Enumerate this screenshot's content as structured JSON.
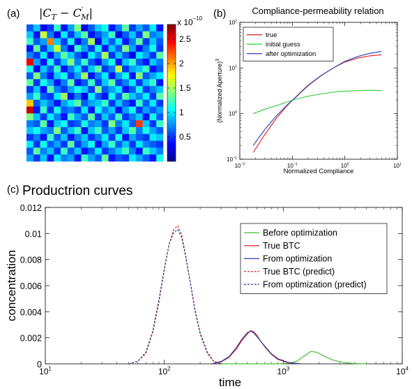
{
  "panels": {
    "a": {
      "tag": "(a)",
      "title": "|C_T − C′_M|"
    },
    "b": {
      "tag": "(b)"
    },
    "c": {
      "tag": "(c)"
    }
  },
  "chart_data": [
    {
      "type": "heatmap",
      "panel": "a",
      "title": "|C_T − C′_M|",
      "rows": 20,
      "cols": 20,
      "colormap": "jet",
      "colorbar": {
        "multiplier": "x 10",
        "exponent": "−10",
        "range": [
          0,
          2.8
        ],
        "ticks": [
          0.5,
          1,
          1.5,
          2,
          2.5
        ],
        "tick_labels": [
          "0.5",
          "1",
          "1.5",
          "2",
          "2.5"
        ]
      },
      "values": [
        [
          0.6,
          0.9,
          0.3,
          0.5,
          1.2,
          0.4,
          0.8,
          1.4,
          0.3,
          0.6,
          0.9,
          1.1,
          0.4,
          0.7,
          1.3,
          0.5,
          0.8,
          0.6,
          1.0,
          0.4
        ],
        [
          0.9,
          0.4,
          1.6,
          0.7,
          0.3,
          1.0,
          0.5,
          0.9,
          1.3,
          0.4,
          0.6,
          0.8,
          1.2,
          0.3,
          0.6,
          0.9,
          0.5,
          1.4,
          0.7,
          0.8
        ],
        [
          1.2,
          0.6,
          0.8,
          2.1,
          0.9,
          0.5,
          1.1,
          0.4,
          0.7,
          1.5,
          0.3,
          0.9,
          0.6,
          1.0,
          0.4,
          0.7,
          1.3,
          0.5,
          0.9,
          0.6
        ],
        [
          0.4,
          1.3,
          0.5,
          0.9,
          1.6,
          0.7,
          0.3,
          1.2,
          0.8,
          0.5,
          1.1,
          0.4,
          0.9,
          0.6,
          1.4,
          0.8,
          0.4,
          0.7,
          1.1,
          0.5
        ],
        [
          0.7,
          0.5,
          1.0,
          0.4,
          0.8,
          1.3,
          0.9,
          0.6,
          0.4,
          1.0,
          0.7,
          1.5,
          0.5,
          0.9,
          0.6,
          0.3,
          1.0,
          0.8,
          0.5,
          1.3
        ],
        [
          2.5,
          0.8,
          0.4,
          1.1,
          0.5,
          0.9,
          1.4,
          0.7,
          1.2,
          0.6,
          0.4,
          0.8,
          1.1,
          0.4,
          0.9,
          1.2,
          0.6,
          0.4,
          0.9,
          0.7
        ],
        [
          1.1,
          0.3,
          0.9,
          0.6,
          1.2,
          0.4,
          0.7,
          1.0,
          0.5,
          0.9,
          1.3,
          0.5,
          0.7,
          1.6,
          0.5,
          0.8,
          0.9,
          1.2,
          0.4,
          0.6
        ],
        [
          0.6,
          1.4,
          0.7,
          0.4,
          0.9,
          1.1,
          0.5,
          0.8,
          1.5,
          0.4,
          0.7,
          1.0,
          0.4,
          0.8,
          1.1,
          0.4,
          1.4,
          0.6,
          0.8,
          1.0
        ],
        [
          1.3,
          0.5,
          1.1,
          0.8,
          0.4,
          0.7,
          1.3,
          0.4,
          0.6,
          1.2,
          0.5,
          0.9,
          1.3,
          0.5,
          0.7,
          1.0,
          0.5,
          0.9,
          1.2,
          0.4
        ],
        [
          0.5,
          0.9,
          0.4,
          1.3,
          0.7,
          0.5,
          0.8,
          1.1,
          0.9,
          0.5,
          1.4,
          0.6,
          0.8,
          1.0,
          0.4,
          0.6,
          1.1,
          0.5,
          0.7,
          0.9
        ],
        [
          0.8,
          1.2,
          0.6,
          0.5,
          1.0,
          1.5,
          0.4,
          0.7,
          0.3,
          1.0,
          0.6,
          0.4,
          1.1,
          0.6,
          1.3,
          0.9,
          0.7,
          1.0,
          0.5,
          1.3
        ],
        [
          1.9,
          0.6,
          0.9,
          0.7,
          0.4,
          0.8,
          1.0,
          1.3,
          0.6,
          0.8,
          0.9,
          1.2,
          0.5,
          0.9,
          0.6,
          0.4,
          1.2,
          0.6,
          1.0,
          0.5
        ],
        [
          2.6,
          0.4,
          1.2,
          0.5,
          1.1,
          0.6,
          0.7,
          0.5,
          1.0,
          0.4,
          1.1,
          0.7,
          0.9,
          0.4,
          0.8,
          1.1,
          0.5,
          0.8,
          0.6,
          0.8
        ],
        [
          1.4,
          0.9,
          0.5,
          1.0,
          0.7,
          0.4,
          1.2,
          0.8,
          0.6,
          1.3,
          0.5,
          0.9,
          0.6,
          1.2,
          0.5,
          0.7,
          0.9,
          0.4,
          1.1,
          0.6
        ],
        [
          0.7,
          0.6,
          1.3,
          0.4,
          0.9,
          1.1,
          0.5,
          0.6,
          1.1,
          0.7,
          0.8,
          0.5,
          1.4,
          0.7,
          1.0,
          0.6,
          2.3,
          0.9,
          0.5,
          1.2
        ],
        [
          0.9,
          1.1,
          0.8,
          0.7,
          1.4,
          0.6,
          0.9,
          1.2,
          0.4,
          0.9,
          1.2,
          0.6,
          0.8,
          0.5,
          0.9,
          1.3,
          0.7,
          1.1,
          0.8,
          0.6
        ],
        [
          0.5,
          0.7,
          0.4,
          1.2,
          0.6,
          0.9,
          0.4,
          0.7,
          0.9,
          0.5,
          0.7,
          1.0,
          0.5,
          1.1,
          0.4,
          0.8,
          0.6,
          0.5,
          1.0,
          0.9
        ],
        [
          1.0,
          0.5,
          1.1,
          0.6,
          0.8,
          0.5,
          1.3,
          0.5,
          0.8,
          1.1,
          0.4,
          0.8,
          1.2,
          0.6,
          0.9,
          0.5,
          1.0,
          0.7,
          0.6,
          0.5
        ],
        [
          0.6,
          1.3,
          0.7,
          0.9,
          0.5,
          1.2,
          0.6,
          0.9,
          0.4,
          0.6,
          1.0,
          0.5,
          0.7,
          0.9,
          1.2,
          0.7,
          0.4,
          1.2,
          0.9,
          0.7
        ],
        [
          0.8,
          0.5,
          0.9,
          0.4,
          1.0,
          0.7,
          0.8,
          0.4,
          1.2,
          0.8,
          0.6,
          1.3,
          0.4,
          0.6,
          0.5,
          1.0,
          0.8,
          0.6,
          0.4,
          1.1
        ]
      ]
    },
    {
      "type": "line",
      "panel": "b",
      "title": "Compliance-permeability relation",
      "xlabel": "Normalized Compliance",
      "ylabel": "(Normalized Aperture)",
      "ylabel_sup": "3",
      "xscale": "log",
      "yscale": "log",
      "xlim": [
        0.01,
        10
      ],
      "ylim": [
        0.1,
        100
      ],
      "xticks": [
        {
          "v": 0.01,
          "b": "10",
          "e": "−2"
        },
        {
          "v": 0.1,
          "b": "10",
          "e": "−1"
        },
        {
          "v": 1,
          "b": "10",
          "e": "0"
        },
        {
          "v": 10,
          "b": "10",
          "e": "1"
        }
      ],
      "yticks": [
        {
          "v": 0.1,
          "b": "10",
          "e": "−1"
        },
        {
          "v": 1,
          "b": "10",
          "e": "0"
        },
        {
          "v": 10,
          "b": "10",
          "e": "1"
        },
        {
          "v": 100,
          "b": "10",
          "e": "2"
        }
      ],
      "legend_position": "top-left",
      "series": [
        {
          "name": "true",
          "color": "#e31a1c",
          "x": [
            0.018,
            0.03,
            0.05,
            0.08,
            0.12,
            0.2,
            0.35,
            0.6,
            1,
            1.8,
            3,
            5
          ],
          "y": [
            0.14,
            0.35,
            0.8,
            1.5,
            2.4,
            4.2,
            6.8,
            10,
            13.5,
            16.5,
            18.5,
            19.5
          ]
        },
        {
          "name": "initial guess",
          "color": "#33cc33",
          "x": [
            0.018,
            0.03,
            0.05,
            0.08,
            0.12,
            0.2,
            0.35,
            0.6,
            1,
            1.8,
            3,
            5
          ],
          "y": [
            1.0,
            1.25,
            1.5,
            1.8,
            2.1,
            2.4,
            2.7,
            2.95,
            3.1,
            3.2,
            3.25,
            3.2
          ]
        },
        {
          "name": "after optimization",
          "color": "#1f3fbf",
          "x": [
            0.018,
            0.03,
            0.05,
            0.08,
            0.12,
            0.2,
            0.35,
            0.6,
            1,
            1.8,
            3,
            5
          ],
          "y": [
            0.2,
            0.45,
            0.9,
            1.55,
            2.35,
            4.1,
            6.7,
            10,
            14,
            18,
            21,
            23
          ]
        }
      ]
    },
    {
      "type": "line",
      "panel": "c",
      "title": "Productrion curves",
      "xlabel": "time",
      "ylabel": "concentration",
      "xscale": "log",
      "xlim": [
        10,
        10000
      ],
      "ylim": [
        0,
        0.012
      ],
      "xticks": [
        {
          "v": 10,
          "b": "10",
          "e": "1"
        },
        {
          "v": 100,
          "b": "10",
          "e": "2"
        },
        {
          "v": 1000,
          "b": "10",
          "e": "3"
        },
        {
          "v": 10000,
          "b": "10",
          "e": "4"
        }
      ],
      "yticks": [
        0,
        0.002,
        0.004,
        0.006,
        0.008,
        0.01,
        0.012
      ],
      "ytick_labels": [
        "0",
        "0.002",
        "0.004",
        "0.006",
        "0.008",
        "0.01",
        "0.012"
      ],
      "legend_position": "right",
      "series": [
        {
          "name": "Before optimization",
          "color": "#44bb33",
          "dash": "solid",
          "x": [
            300,
            600,
            900,
            1100,
            1300,
            1500,
            1700,
            1900,
            2200,
            2600,
            3200,
            4000,
            5000
          ],
          "y": [
            0,
            0,
            0,
            5e-05,
            0.0002,
            0.0006,
            0.00095,
            0.0009,
            0.0006,
            0.0003,
            0.0001,
            2e-05,
            0
          ]
        },
        {
          "name": "True BTC",
          "color": "#d62728",
          "dash": "solid",
          "x": [
            250,
            300,
            350,
            400,
            450,
            500,
            530,
            560,
            600,
            650,
            700,
            800,
            900,
            1100,
            1400
          ],
          "y": [
            0,
            0.00015,
            0.0005,
            0.0011,
            0.0018,
            0.0023,
            0.00255,
            0.0025,
            0.0022,
            0.0017,
            0.0013,
            0.0007,
            0.00035,
            8e-05,
            0
          ]
        },
        {
          "name": "From optimization",
          "color": "#2c3e9f",
          "dash": "solid",
          "x": [
            250,
            300,
            350,
            400,
            450,
            500,
            530,
            560,
            600,
            650,
            700,
            800,
            900,
            1100,
            1400
          ],
          "y": [
            0,
            0.00018,
            0.00055,
            0.0012,
            0.0019,
            0.0024,
            0.0025,
            0.0024,
            0.0021,
            0.0017,
            0.00135,
            0.00075,
            0.0004,
            0.0001,
            0
          ]
        },
        {
          "name": "True BTC (predict)",
          "color": "#d62728",
          "dash": "dashed",
          "x": [
            50,
            60,
            70,
            80,
            90,
            100,
            110,
            120,
            130,
            140,
            150,
            165,
            180,
            200,
            230,
            260,
            300
          ],
          "y": [
            0,
            0.0002,
            0.0008,
            0.0024,
            0.0047,
            0.0072,
            0.0092,
            0.0103,
            0.0106,
            0.0099,
            0.0085,
            0.0063,
            0.0042,
            0.0023,
            0.0008,
            0.0002,
            0
          ]
        },
        {
          "name": "From optimization (predict)",
          "color": "#2c3e9f",
          "dash": "dashed",
          "x": [
            50,
            60,
            70,
            80,
            90,
            100,
            110,
            120,
            130,
            140,
            150,
            165,
            180,
            200,
            230,
            260,
            300
          ],
          "y": [
            0,
            0.0002,
            0.0009,
            0.0025,
            0.0049,
            0.0073,
            0.0092,
            0.0101,
            0.0103,
            0.0097,
            0.0084,
            0.0063,
            0.0043,
            0.0024,
            0.0009,
            0.0002,
            0
          ]
        }
      ]
    }
  ]
}
